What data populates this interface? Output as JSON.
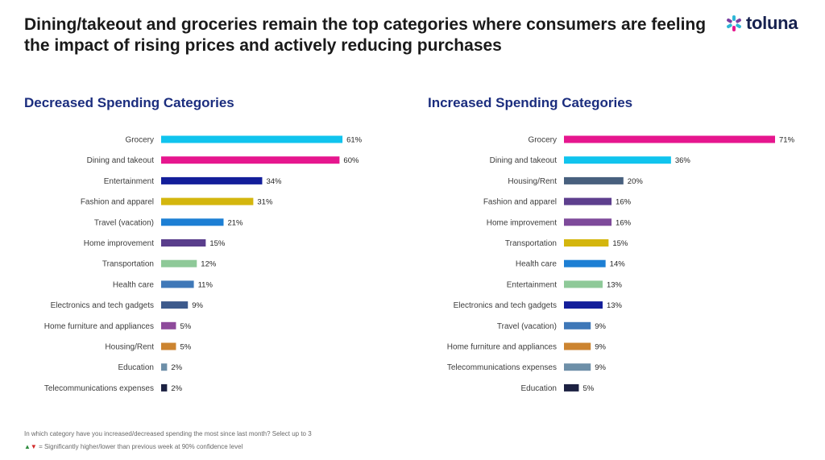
{
  "header": {
    "title": "Dining/takeout and groceries remain the top categories where consumers are feeling the impact of rising prices and actively reducing purchases",
    "logo_text": "toluna"
  },
  "chart_data": [
    {
      "type": "bar",
      "orientation": "horizontal",
      "title": "Decreased Spending Categories",
      "value_suffix": "%",
      "xlim": [
        0,
        71
      ],
      "categories": [
        "Grocery",
        "Dining and takeout",
        "Entertainment",
        "Fashion and apparel",
        "Travel (vacation)",
        "Home improvement",
        "Transportation",
        "Health care",
        "Electronics and tech gadgets",
        "Home furniture and appliances",
        "Housing/Rent",
        "Education",
        "Telecommunications expenses"
      ],
      "values": [
        61,
        60,
        34,
        31,
        21,
        15,
        12,
        11,
        9,
        5,
        5,
        2,
        2
      ],
      "colors": [
        "#10c4ee",
        "#e6168e",
        "#131e9a",
        "#d4b60e",
        "#1d7fd4",
        "#5a3e8c",
        "#8ec998",
        "#3f78b8",
        "#3d5a8c",
        "#8e4a9b",
        "#cc8430",
        "#6d8fa8",
        "#1c2142"
      ]
    },
    {
      "type": "bar",
      "orientation": "horizontal",
      "title": "Increased Spending Categories",
      "value_suffix": "%",
      "xlim": [
        0,
        71
      ],
      "categories": [
        "Grocery",
        "Dining and takeout",
        "Housing/Rent",
        "Fashion and apparel",
        "Home improvement",
        "Transportation",
        "Health care",
        "Entertainment",
        "Electronics and tech gadgets",
        "Travel (vacation)",
        "Home furniture and appliances",
        "Telecommunications expenses",
        "Education"
      ],
      "values": [
        71,
        36,
        20,
        16,
        16,
        15,
        14,
        13,
        13,
        9,
        9,
        9,
        5
      ],
      "colors": [
        "#e6168e",
        "#10c4ee",
        "#48607e",
        "#5e3f8e",
        "#7e4a9a",
        "#d4b60e",
        "#1d7fd4",
        "#8ec998",
        "#131e9a",
        "#3f78b8",
        "#cc8430",
        "#6d8fa8",
        "#1c2142"
      ]
    }
  ],
  "footer": {
    "question": "In which category have you increased/decreased spending the most since last month? Select up to 3",
    "arrow_up": "▲",
    "arrow_down": "▼",
    "note": " = Significantly higher/lower than previous week at 90% confidence level"
  }
}
